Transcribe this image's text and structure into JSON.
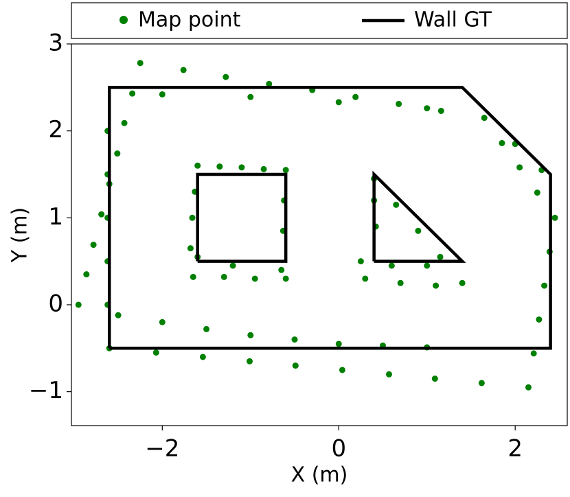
{
  "chart_data": {
    "type": "scatter",
    "xlabel": "X (m)",
    "ylabel": "Y (m)",
    "xlim": [
      -3.03,
      2.59
    ],
    "ylim": [
      -1.39,
      3.0
    ],
    "xticks": [
      {
        "value": -2,
        "label": "−2"
      },
      0,
      2
    ],
    "yticks": [
      {
        "value": -1,
        "label": "−1"
      },
      0,
      1,
      2,
      3
    ],
    "legend": "top-outside",
    "series": [
      {
        "name": "Map point",
        "type": "scatter",
        "color": "#008000",
        "x": [
          -2.25,
          -1.76,
          -1.28,
          -0.79,
          -0.3,
          0.19,
          0.68,
          1.16,
          1.65,
          1.85,
          2.05,
          2.25,
          2.45,
          2.39,
          2.33,
          2.27,
          2.21,
          2.15,
          -2.6,
          -2.07,
          -1.54,
          -1.01,
          -0.49,
          0.04,
          0.57,
          1.09,
          1.62,
          -2.95,
          -2.86,
          -2.78,
          -2.69,
          -2.6,
          -2.51,
          -2.43,
          -2.34,
          -2.62,
          -2.62,
          -2.62,
          -2.62,
          -2.62,
          -2.0,
          -1.0,
          0,
          1.0,
          2.0,
          2.3,
          -2.5,
          -2.0,
          -1.5,
          -1.0,
          -0.5,
          0,
          0.5,
          1.0,
          -1.6,
          -1.35,
          -1.1,
          -0.85,
          -0.6,
          -0.62,
          -0.63,
          -0.65,
          -1.65,
          -1.3,
          -0.95,
          -0.6,
          -1.68,
          -1.66,
          -1.63,
          -1.6,
          -1.2,
          0.4,
          0.65,
          0.9,
          1.15,
          1.4,
          1.1,
          0.7,
          0.3,
          0.25,
          0.42,
          0.4,
          0.6,
          1.0
        ],
        "y": [
          2.78,
          2.7,
          2.62,
          2.54,
          2.47,
          2.39,
          2.31,
          2.23,
          2.15,
          1.86,
          1.58,
          1.29,
          1.0,
          0.61,
          0.22,
          -0.17,
          -0.56,
          -0.95,
          -0.5,
          -0.55,
          -0.6,
          -0.65,
          -0.7,
          -0.75,
          -0.8,
          -0.85,
          -0.9,
          0.0,
          0.35,
          0.69,
          1.04,
          1.39,
          1.74,
          2.09,
          2.43,
          0,
          0.5,
          1,
          1.5,
          2,
          2.42,
          2.39,
          2.33,
          2.26,
          1.85,
          1.55,
          -0.12,
          -0.2,
          -0.28,
          -0.35,
          -0.4,
          -0.45,
          -0.47,
          -0.49,
          1.6,
          1.59,
          1.58,
          1.56,
          1.55,
          1.2,
          0.85,
          0.4,
          0.32,
          0.32,
          0.3,
          0.3,
          0.65,
          1.0,
          1.3,
          0.55,
          0.45,
          1.45,
          1.15,
          0.85,
          0.55,
          0.25,
          0.22,
          0.25,
          0.3,
          0.5,
          0.9,
          1.2,
          0.45,
          0.45
        ]
      },
      {
        "name": "Wall GT",
        "type": "line",
        "color": "#000000",
        "x": [
          -2.6,
          -2.6,
          1.4,
          2.4,
          2.4,
          -2.6,
          null,
          -1.6,
          -1.6,
          -0.6,
          -0.6,
          -1.6,
          null,
          0.4,
          0.4,
          1.4,
          0.4
        ],
        "y": [
          -0.5,
          2.5,
          2.5,
          1.5,
          -0.5,
          -0.5,
          null,
          0.5,
          1.5,
          1.5,
          0.5,
          0.5,
          null,
          0.5,
          1.5,
          0.5,
          0.5
        ]
      }
    ]
  }
}
